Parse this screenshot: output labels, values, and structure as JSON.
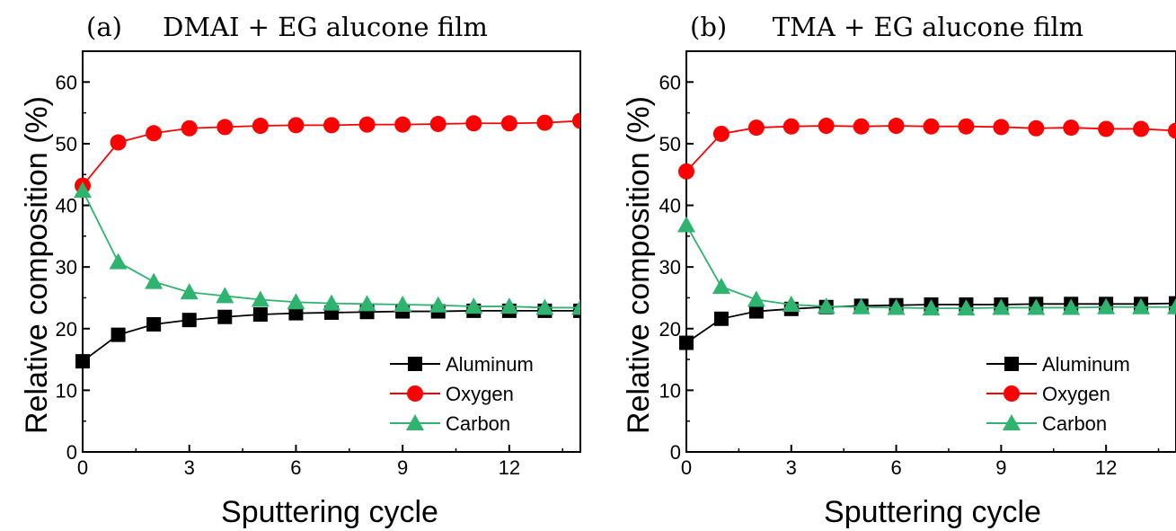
{
  "chart_data": [
    {
      "type": "line",
      "panel_label": "(a)",
      "title": "DMAI + EG alucone film",
      "xlabel": "Sputtering cycle",
      "ylabel": "Relative composition (%)",
      "xlim": [
        0,
        14
      ],
      "ylim": [
        0,
        65
      ],
      "xticks": [
        0,
        3,
        6,
        9,
        12
      ],
      "xtick_labels": [
        "0",
        "3",
        "6",
        "9",
        "12"
      ],
      "yticks": [
        0,
        10,
        20,
        30,
        40,
        50,
        60
      ],
      "ytick_labels": [
        "0",
        "10",
        "20",
        "30",
        "40",
        "50",
        "60"
      ],
      "grid": false,
      "legend_position": "bottom-right",
      "x": [
        0,
        1,
        2,
        3,
        4,
        5,
        6,
        7,
        8,
        9,
        10,
        11,
        12,
        13,
        14
      ],
      "series": [
        {
          "name": "Aluminum",
          "marker": "square",
          "color": "#000000",
          "values": [
            14.7,
            19.0,
            20.7,
            21.4,
            21.9,
            22.3,
            22.5,
            22.6,
            22.7,
            22.8,
            22.8,
            22.9,
            22.9,
            22.9,
            22.9
          ]
        },
        {
          "name": "Oxygen",
          "marker": "circle",
          "color": "#ff0000",
          "values": [
            43.2,
            50.2,
            51.7,
            52.5,
            52.7,
            52.9,
            53.0,
            53.0,
            53.1,
            53.1,
            53.2,
            53.3,
            53.3,
            53.4,
            53.7
          ]
        },
        {
          "name": "Carbon",
          "marker": "triangle",
          "color": "#2eb46e",
          "values": [
            42.4,
            30.8,
            27.6,
            25.9,
            25.3,
            24.7,
            24.3,
            24.1,
            24.0,
            23.9,
            23.8,
            23.6,
            23.6,
            23.4,
            23.4
          ]
        }
      ]
    },
    {
      "type": "line",
      "panel_label": "(b)",
      "title": "TMA + EG alucone film",
      "xlabel": "Sputtering cycle",
      "ylabel": "Relative composition (%)",
      "xlim": [
        0,
        14
      ],
      "ylim": [
        0,
        65
      ],
      "xticks": [
        0,
        3,
        6,
        9,
        12
      ],
      "xtick_labels": [
        "0",
        "3",
        "6",
        "9",
        "12"
      ],
      "yticks": [
        0,
        10,
        20,
        30,
        40,
        50,
        60
      ],
      "ytick_labels": [
        "0",
        "10",
        "20",
        "30",
        "40",
        "50",
        "60"
      ],
      "grid": false,
      "legend_position": "bottom-right",
      "x": [
        0,
        1,
        2,
        3,
        4,
        5,
        6,
        7,
        8,
        9,
        10,
        11,
        12,
        13,
        14
      ],
      "series": [
        {
          "name": "Aluminum",
          "marker": "square",
          "color": "#000000",
          "values": [
            17.7,
            21.6,
            22.8,
            23.2,
            23.5,
            23.7,
            23.8,
            23.9,
            23.9,
            23.9,
            24.0,
            24.0,
            24.0,
            24.0,
            24.1
          ]
        },
        {
          "name": "Oxygen",
          "marker": "circle",
          "color": "#ff0000",
          "values": [
            45.5,
            51.6,
            52.6,
            52.8,
            52.9,
            52.8,
            52.9,
            52.8,
            52.8,
            52.7,
            52.5,
            52.6,
            52.4,
            52.4,
            52.1
          ]
        },
        {
          "name": "Carbon",
          "marker": "triangle",
          "color": "#2eb46e",
          "values": [
            36.8,
            26.8,
            24.7,
            23.9,
            23.6,
            23.5,
            23.4,
            23.3,
            23.3,
            23.4,
            23.4,
            23.4,
            23.5,
            23.5,
            23.5
          ]
        }
      ]
    }
  ]
}
